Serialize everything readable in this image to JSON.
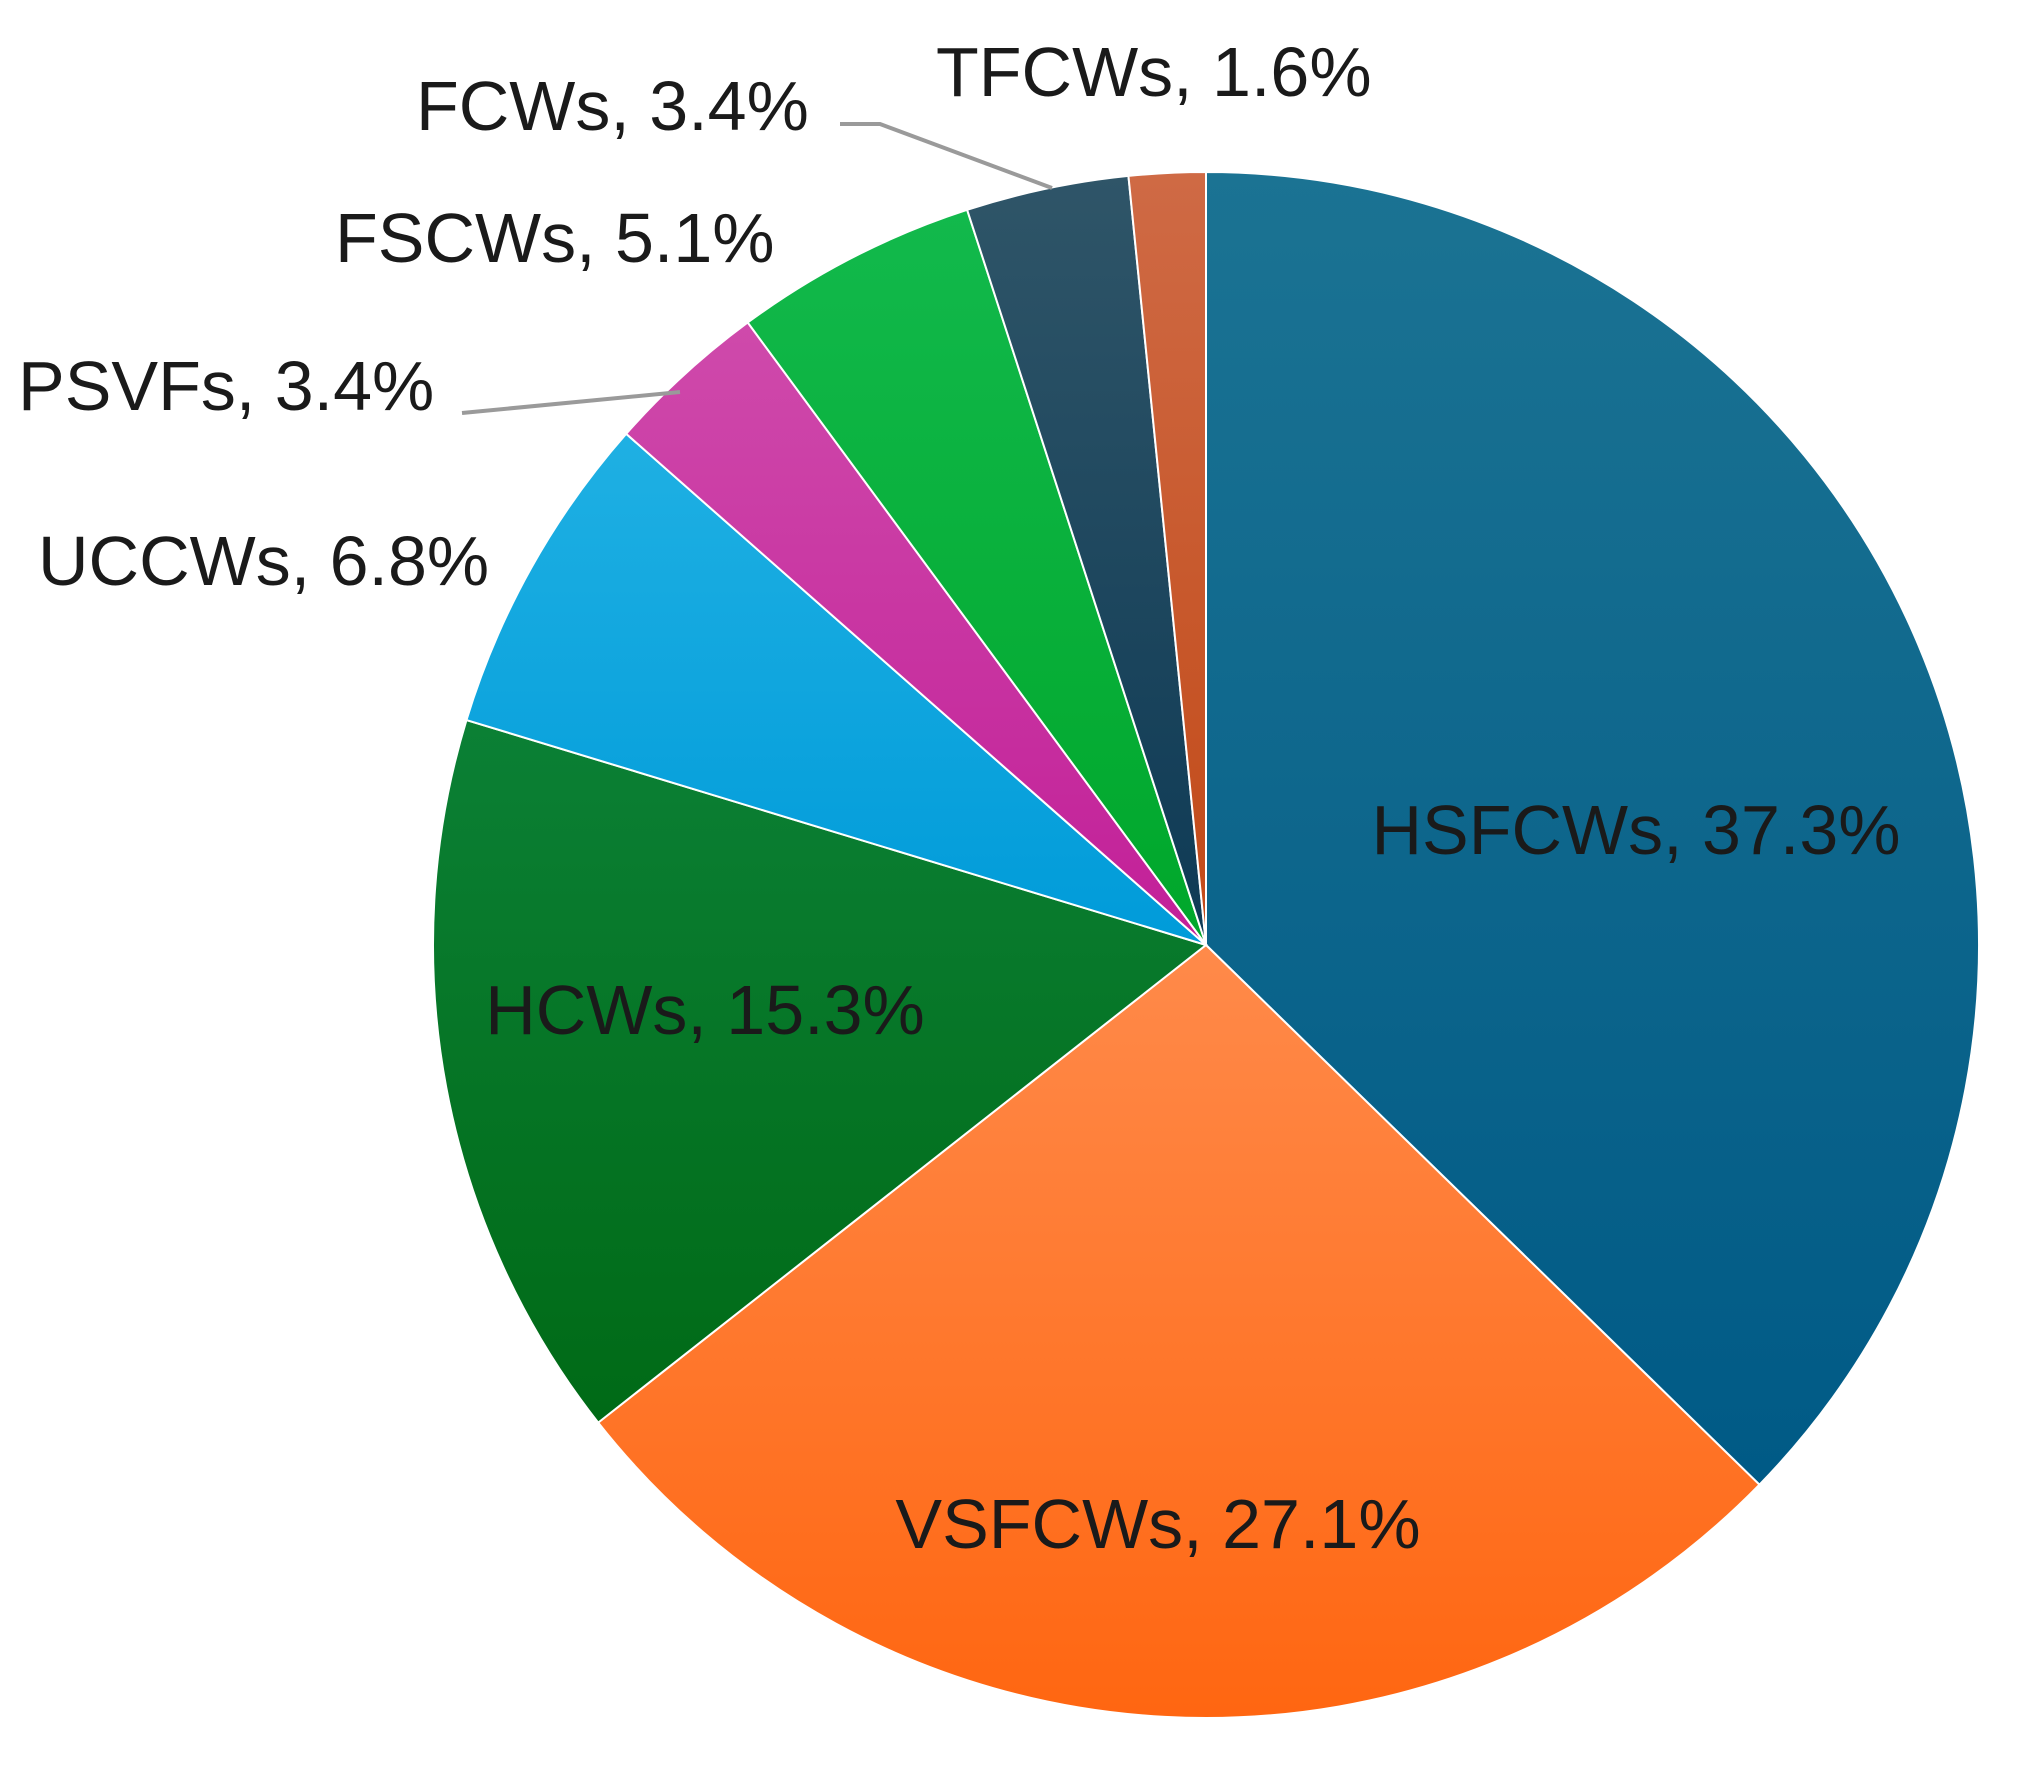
{
  "chart_data": {
    "type": "pie",
    "title": "",
    "start_angle_deg": 0,
    "direction": "clockwise",
    "slices": [
      {
        "name": "HSFCWs",
        "value": 37.3,
        "label": "HSFCWs, 37.3%",
        "color": "#005a86",
        "color_light": "#1b7393",
        "label_placement": "inside"
      },
      {
        "name": "VSFCWs",
        "value": 27.1,
        "label": "VSFCWs, 27.1%",
        "color": "#ff6611",
        "color_light": "#ff8a4a",
        "label_placement": "inside"
      },
      {
        "name": "HCWs",
        "value": 15.3,
        "label": "HCWs, 15.3%",
        "color": "#006a16",
        "color_light": "#0b8035",
        "label_placement": "inside"
      },
      {
        "name": "UCCWs",
        "value": 6.8,
        "label": "UCCWs, 6.8%",
        "color": "#009bd9",
        "color_light": "#1fb0e3",
        "label_placement": "outside"
      },
      {
        "name": "PSVFs",
        "value": 3.4,
        "label": "PSVFs, 3.4%",
        "color": "#c21f98",
        "color_light": "#cf4aab",
        "label_placement": "outside-leader"
      },
      {
        "name": "FSCWs",
        "value": 5.1,
        "label": "FSCWs, 5.1%",
        "color": "#00a72a",
        "color_light": "#12b94c",
        "label_placement": "outside"
      },
      {
        "name": "FCWs",
        "value": 3.4,
        "label": "FCWs, 3.4%",
        "color": "#0e3a55",
        "color_light": "#2f5568",
        "label_placement": "outside-leader"
      },
      {
        "name": "TFCWs",
        "value": 1.6,
        "label": "TFCWs, 1.6%",
        "color": "#c24a18",
        "color_light": "#cf6a45",
        "label_placement": "outside"
      }
    ]
  }
}
